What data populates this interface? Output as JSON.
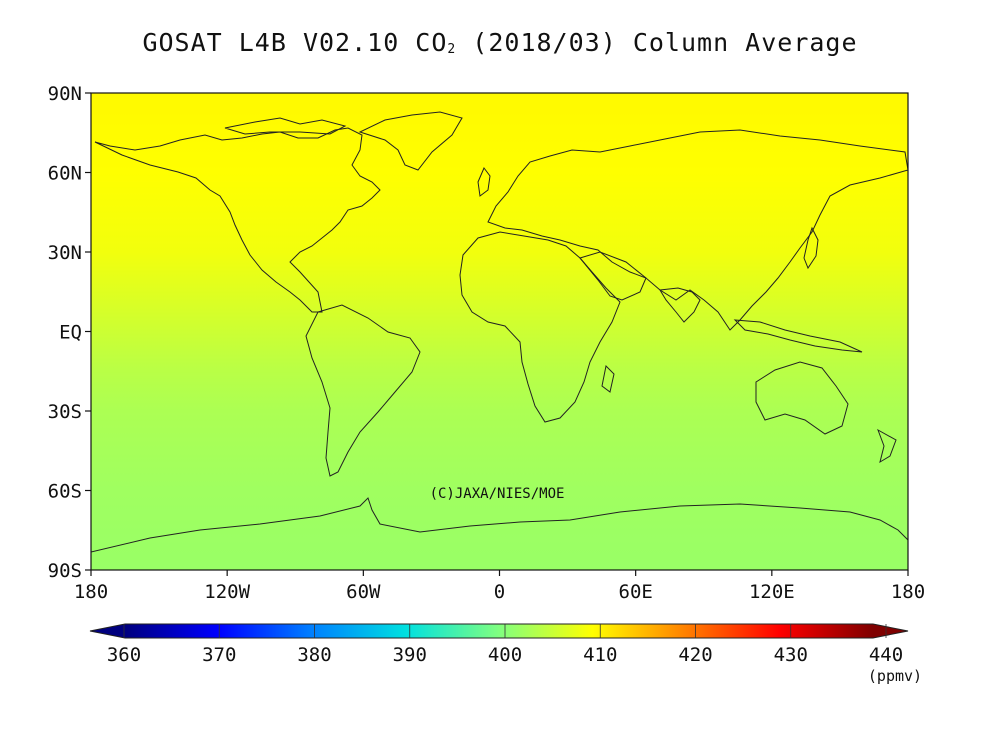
{
  "title": {
    "prefix": "GOSAT L4B V02.10 CO",
    "subscript": "2",
    "suffix": " (2018/03) Column Average"
  },
  "map": {
    "projection": "equirectangular",
    "lon_range": [
      -180,
      180
    ],
    "lat_range": [
      -90,
      90
    ],
    "lat_ticks": [
      {
        "lat": 90,
        "label": "90N"
      },
      {
        "lat": 60,
        "label": "60N"
      },
      {
        "lat": 30,
        "label": "30N"
      },
      {
        "lat": 0,
        "label": "EQ"
      },
      {
        "lat": -30,
        "label": "30S"
      },
      {
        "lat": -60,
        "label": "60S"
      },
      {
        "lat": -90,
        "label": "90S"
      }
    ],
    "lon_ticks": [
      {
        "lon": -180,
        "label": "180"
      },
      {
        "lon": -120,
        "label": "120W"
      },
      {
        "lon": -60,
        "label": "60W"
      },
      {
        "lon": 0,
        "label": "0"
      },
      {
        "lon": 60,
        "label": "60E"
      },
      {
        "lon": 120,
        "label": "120E"
      },
      {
        "lon": 180,
        "label": "180"
      }
    ],
    "credit": "(C)JAXA/NIES/MOE"
  },
  "chart_data": {
    "type": "heatmap",
    "variable": "CO2 column average",
    "unit": "(ppmv)",
    "zonal_mean_by_lat": [
      {
        "lat": 90,
        "value": 410.5
      },
      {
        "lat": 60,
        "value": 410.0
      },
      {
        "lat": 30,
        "value": 409.0
      },
      {
        "lat": 15,
        "value": 407.5
      },
      {
        "lat": 0,
        "value": 406.0
      },
      {
        "lat": -15,
        "value": 404.5
      },
      {
        "lat": -30,
        "value": 403.5
      },
      {
        "lat": -60,
        "value": 402.5
      },
      {
        "lat": -90,
        "value": 402.0
      }
    ],
    "colorbar": {
      "min": 360,
      "max": 440,
      "ticks": [
        "360",
        "370",
        "380",
        "390",
        "400",
        "410",
        "420",
        "430",
        "440"
      ],
      "stops": [
        {
          "value": 360,
          "color": "#00007f"
        },
        {
          "value": 370,
          "color": "#0000ff"
        },
        {
          "value": 380,
          "color": "#0080ff"
        },
        {
          "value": 390,
          "color": "#00e0e0"
        },
        {
          "value": 400,
          "color": "#80ff80"
        },
        {
          "value": 410,
          "color": "#ffff00"
        },
        {
          "value": 420,
          "color": "#ff8000"
        },
        {
          "value": 430,
          "color": "#ff0000"
        },
        {
          "value": 440,
          "color": "#7f0000"
        }
      ]
    }
  }
}
